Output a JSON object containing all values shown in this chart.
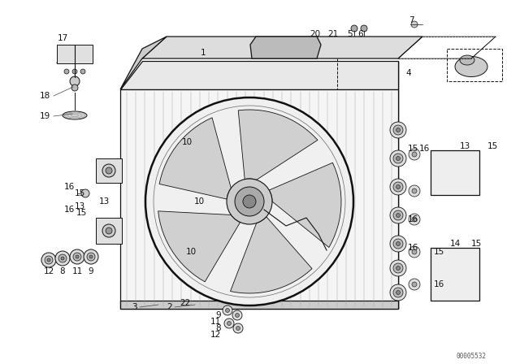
{
  "bg_color": "#ffffff",
  "line_color": "#111111",
  "watermark": "00005532",
  "fill_light": "#e8e8e8",
  "fill_mid": "#cccccc",
  "fill_dark": "#aaaaaa"
}
